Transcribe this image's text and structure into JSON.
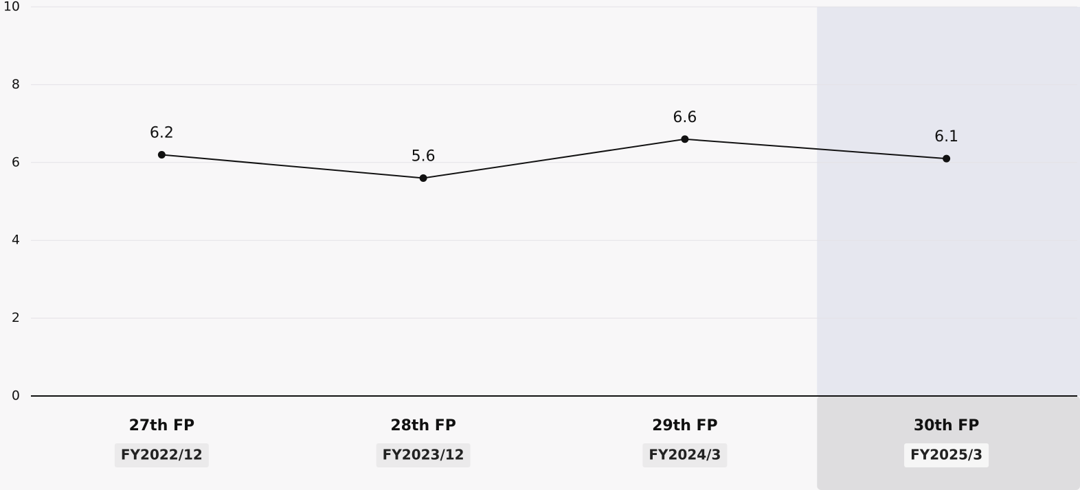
{
  "chart_data": {
    "type": "line",
    "categories": [
      "27th FP",
      "28th FP",
      "29th FP",
      "30th FP"
    ],
    "periods": [
      "FY2022/12",
      "FY2023/12",
      "FY2024/3",
      "FY2025/3"
    ],
    "values": [
      6.2,
      5.6,
      6.6,
      6.1
    ],
    "color": "#111111",
    "ylim": [
      0,
      10
    ],
    "yticks": [
      0,
      2,
      4,
      6,
      8,
      10
    ],
    "grid": true
  }
}
